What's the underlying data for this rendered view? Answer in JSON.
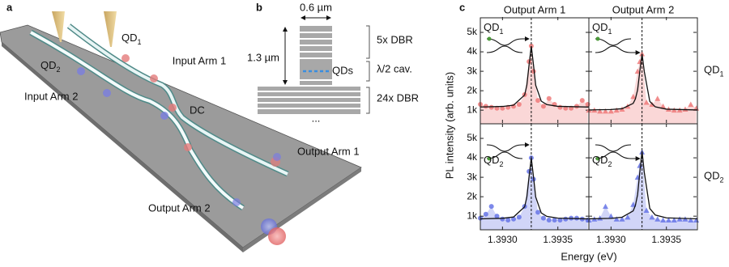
{
  "panel_a": {
    "label": "a",
    "qd1": {
      "base": "QD",
      "sub": "1"
    },
    "qd2": {
      "base": "QD",
      "sub": "2"
    },
    "input_arm_1": "Input Arm 1",
    "input_arm_2": "Input Arm 2",
    "dc": "DC",
    "output_arm_1": "Output Arm 1",
    "output_arm_2": "Output Arm 2"
  },
  "panel_b": {
    "label": "b",
    "width": "0.6 µm",
    "height": "1.3 µm",
    "top_dbr": "5x DBR",
    "qds": "QDs",
    "cavity": "λ/2 cav.",
    "bottom_dbr": "24x DBR",
    "more": "..."
  },
  "panel_c": {
    "label": "c",
    "y_label": "PL intensity (arb. units)",
    "x_label": "Energy (eV)"
  },
  "chart_data": [
    {
      "type": "scatter",
      "title": "Output Arm 1",
      "inset_label": {
        "base": "QD",
        "sub": "1"
      },
      "marker": "circle",
      "color": "#ee7a7a",
      "xlim": [
        1.3928,
        1.39378
      ],
      "ylim": [
        300,
        5750
      ],
      "yticks": [
        {
          "value": 1000,
          "label": "1k"
        },
        {
          "value": 2000,
          "label": "2k"
        },
        {
          "value": 3000,
          "label": "3k"
        },
        {
          "value": 4000,
          "label": "4k"
        },
        {
          "value": 5000,
          "label": "5k"
        }
      ],
      "peak_line": 1.39326,
      "x": [
        1.3928,
        1.39285,
        1.3929,
        1.39295,
        1.393,
        1.39305,
        1.3931,
        1.39315,
        1.3932,
        1.39324,
        1.39326,
        1.39328,
        1.39332,
        1.39337,
        1.39342,
        1.39347,
        1.39352,
        1.39357,
        1.39362,
        1.39367,
        1.39372,
        1.39377
      ],
      "values": [
        1300,
        1200,
        1150,
        1100,
        1100,
        1150,
        1200,
        1300,
        1800,
        3500,
        4300,
        3000,
        1500,
        1200,
        1600,
        1300,
        1150,
        1100,
        1100,
        1200,
        1500,
        1300
      ],
      "fit": {
        "x": [
          1.3928,
          1.393,
          1.3931,
          1.3932,
          1.39322,
          1.39324,
          1.39326,
          1.39328,
          1.3933,
          1.39335,
          1.3934,
          1.3935,
          1.39378
        ],
        "values": [
          1163,
          1191,
          1257,
          1780,
          2284,
          3324,
          4300,
          3324,
          2284,
          1465,
          1289,
          1197,
          1160
        ]
      }
    },
    {
      "type": "scatter",
      "title": "Output Arm 2",
      "row_label": {
        "base": "QD",
        "sub": "1"
      },
      "inset_label": {
        "base": "QD",
        "sub": "1"
      },
      "marker": "triangle",
      "color": "#ee7a7a",
      "xlim": [
        1.3928,
        1.39378
      ],
      "ylim": [
        300,
        5750
      ],
      "peak_line": 1.39328,
      "x": [
        1.3928,
        1.39285,
        1.3929,
        1.39295,
        1.393,
        1.39305,
        1.3931,
        1.39315,
        1.3932,
        1.39324,
        1.39326,
        1.39328,
        1.39332,
        1.39337,
        1.39342,
        1.39347,
        1.39352,
        1.39357,
        1.39362,
        1.39367,
        1.39372,
        1.39377
      ],
      "values": [
        1000,
        1000,
        950,
        950,
        950,
        1000,
        1050,
        1200,
        1700,
        3000,
        3500,
        3900,
        1400,
        1300,
        1600,
        1200,
        1050,
        1000,
        1000,
        1050,
        1300,
        1100
      ],
      "fit": {
        "x": [
          1.3928,
          1.393,
          1.3931,
          1.3932,
          1.39322,
          1.39324,
          1.39326,
          1.39328,
          1.3933,
          1.39335,
          1.3934,
          1.3935,
          1.39378
        ],
        "values": [
          1011,
          1032,
          1078,
          1348,
          1580,
          2044,
          3001,
          3900,
          3001,
          1450,
          1171,
          1052,
          1010
        ]
      }
    },
    {
      "type": "scatter",
      "inset_label": {
        "base": "QD",
        "sub": "2"
      },
      "marker": "circle",
      "color": "#6674e6",
      "xlim": [
        1.3928,
        1.39378
      ],
      "ylim": [
        300,
        5750
      ],
      "yticks": [
        {
          "value": 1000,
          "label": "1k"
        },
        {
          "value": 2000,
          "label": "2k"
        },
        {
          "value": 3000,
          "label": "3k"
        },
        {
          "value": 4000,
          "label": "4k"
        },
        {
          "value": 5000,
          "label": "5k"
        }
      ],
      "xticks": [
        {
          "value": 1.393,
          "label": "1.3930"
        },
        {
          "value": 1.3935,
          "label": "1.3935"
        }
      ],
      "peak_line": 1.39326,
      "x": [
        1.3928,
        1.39285,
        1.3929,
        1.39295,
        1.393,
        1.39305,
        1.3931,
        1.39315,
        1.3932,
        1.39324,
        1.39326,
        1.39328,
        1.39332,
        1.39337,
        1.39342,
        1.39347,
        1.39352,
        1.39357,
        1.39362,
        1.39367,
        1.39372,
        1.39377
      ],
      "values": [
        900,
        1100,
        1500,
        1000,
        850,
        800,
        850,
        950,
        1500,
        3300,
        4000,
        2900,
        1200,
        900,
        800,
        800,
        800,
        850,
        900,
        900,
        850,
        800
      ],
      "fit": {
        "x": [
          1.3928,
          1.393,
          1.3931,
          1.3932,
          1.39322,
          1.39324,
          1.39326,
          1.39328,
          1.3933,
          1.39335,
          1.3934,
          1.3935,
          1.39378
        ],
        "values": [
          863,
          891,
          957,
          1480,
          1984,
          3024,
          4000,
          3024,
          1984,
          1165,
          989,
          897,
          860
        ]
      }
    },
    {
      "type": "scatter",
      "row_label": {
        "base": "QD",
        "sub": "2"
      },
      "inset_label": {
        "base": "QD",
        "sub": "2"
      },
      "marker": "triangle",
      "color": "#6674e6",
      "xlim": [
        1.3928,
        1.39378
      ],
      "ylim": [
        300,
        5750
      ],
      "xticks": [
        {
          "value": 1.393,
          "label": "1.3930"
        },
        {
          "value": 1.3935,
          "label": "1.3935"
        }
      ],
      "peak_line": 1.39328,
      "x": [
        1.3928,
        1.39285,
        1.3929,
        1.39295,
        1.393,
        1.39305,
        1.3931,
        1.39315,
        1.3932,
        1.39324,
        1.39326,
        1.39328,
        1.39332,
        1.39337,
        1.39342,
        1.39347,
        1.39352,
        1.39357,
        1.39362,
        1.39367,
        1.39372,
        1.39377
      ],
      "values": [
        800,
        850,
        900,
        1500,
        1000,
        850,
        850,
        950,
        1600,
        3000,
        3600,
        4300,
        1300,
        950,
        850,
        800,
        800,
        800,
        850,
        850,
        800,
        800
      ],
      "fit": {
        "x": [
          1.3928,
          1.393,
          1.3931,
          1.3932,
          1.39322,
          1.39324,
          1.39326,
          1.39328,
          1.3933,
          1.39335,
          1.3934,
          1.3935,
          1.39378
        ],
        "values": [
          864,
          889,
          945,
          1270,
          1550,
          2110,
          3265,
          4350,
          3265,
          1393,
          1057,
          913,
          863
        ]
      }
    }
  ]
}
